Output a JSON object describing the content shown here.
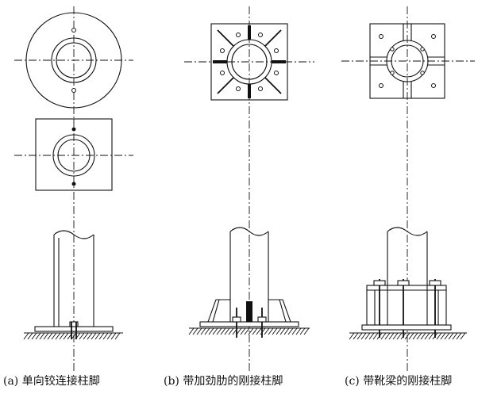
{
  "figure": {
    "captions": [
      "(a) 单向铰连接柱脚",
      "(b) 带加劲肋的刚接柱脚",
      "(c) 带靴梁的刚接柱脚"
    ]
  }
}
